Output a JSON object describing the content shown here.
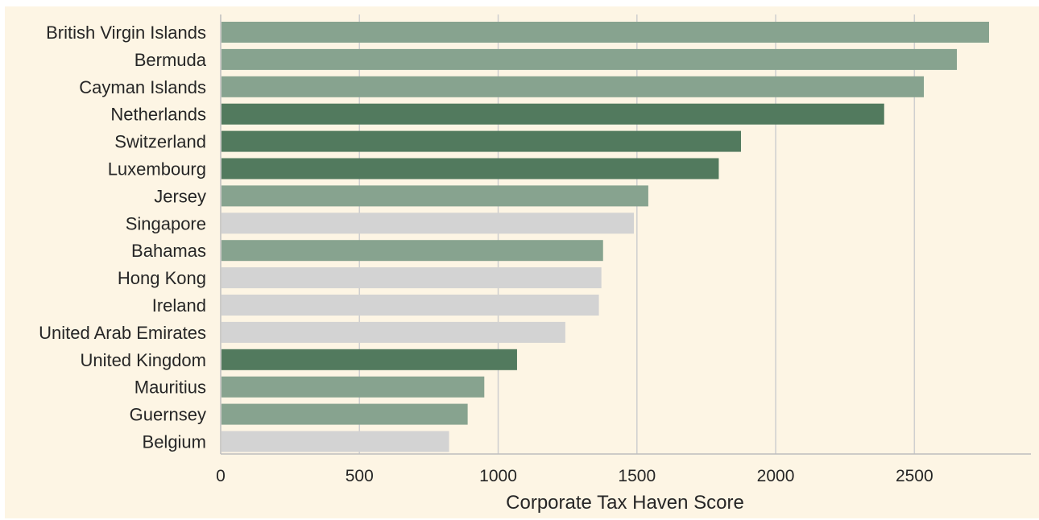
{
  "chart_data": {
    "type": "bar",
    "orientation": "horizontal",
    "title": "",
    "xlabel": "Corporate Tax Haven Score",
    "ylabel": "",
    "xlim": [
      0,
      2920
    ],
    "xticks": [
      0,
      500,
      1000,
      1500,
      2000,
      2500
    ],
    "grid": "vertical",
    "legend": "none",
    "categories": [
      "British Virgin Islands",
      "Bermuda",
      "Cayman Islands",
      "Netherlands",
      "Switzerland",
      "Luxembourg",
      "Jersey",
      "Singapore",
      "Bahamas",
      "Hong Kong",
      "Ireland",
      "United Arab Emirates",
      "United Kingdom",
      "Mauritius",
      "Guernsey",
      "Belgium"
    ],
    "values": [
      2769,
      2653,
      2534,
      2391,
      1875,
      1795,
      1541,
      1489,
      1378,
      1372,
      1363,
      1242,
      1068,
      950,
      890,
      823
    ],
    "bar_colors": [
      "#87a38f",
      "#87a38f",
      "#87a38f",
      "#527a5e",
      "#527a5e",
      "#527a5e",
      "#87a38f",
      "#d3d3d3",
      "#87a38f",
      "#d3d3d3",
      "#d3d3d3",
      "#d3d3d3",
      "#527a5e",
      "#87a38f",
      "#87a38f",
      "#d3d3d3"
    ]
  },
  "colors": {
    "background": "#fdf5e4",
    "grid": "#cfcfcf",
    "axis": "#bdbdbd",
    "text": "#262626"
  }
}
